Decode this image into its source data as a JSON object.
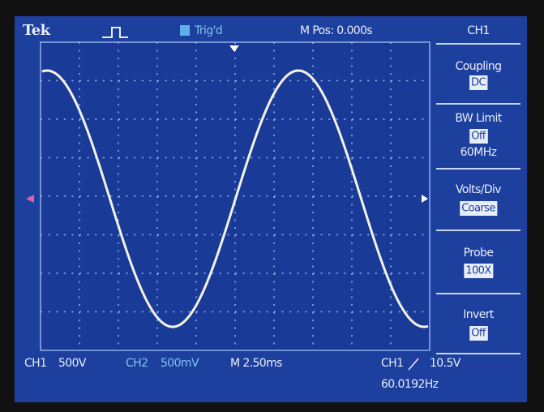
{
  "header": {
    "brand": "Tek",
    "trigger_status": "Trig'd",
    "position": "M Pos: 0.000s"
  },
  "menu": {
    "title": "CH1",
    "items": [
      {
        "label": "Coupling",
        "value": "DC"
      },
      {
        "label": "BW Limit",
        "value": "Off",
        "detail": "60MHz"
      },
      {
        "label": "Volts/Div",
        "value": "Coarse"
      },
      {
        "label": "Probe",
        "value": "100X"
      },
      {
        "label": "Invert",
        "value": "Off"
      }
    ]
  },
  "status": {
    "ch1_label": "CH1",
    "ch1_scale": "500V",
    "ch2_label": "CH2",
    "ch2_scale": "500mV",
    "timebase": "M 2.50ms",
    "trigger_source": "CH1",
    "trigger_level": "10.5V",
    "frequency": "60.0192Hz"
  }
}
